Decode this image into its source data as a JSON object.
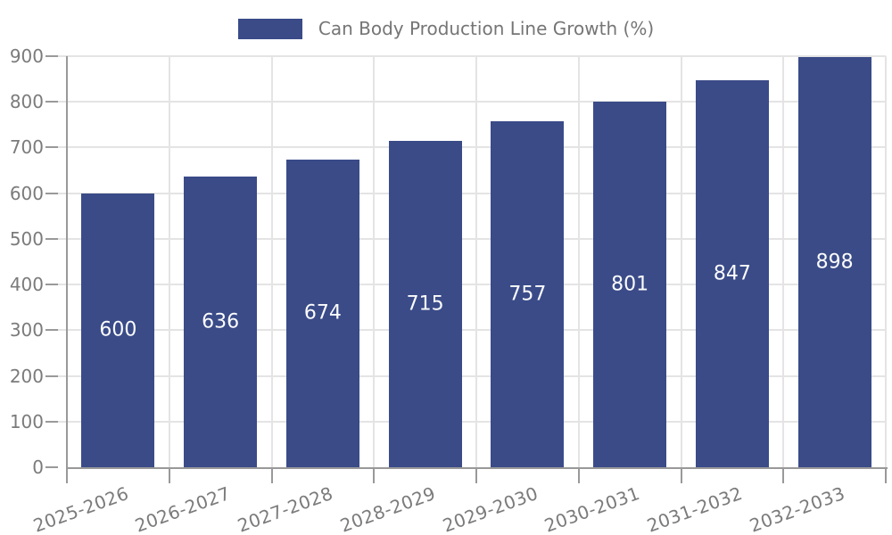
{
  "legend": {
    "position": "top-center"
  },
  "colors": {
    "bar": "#3A4B88",
    "bar_label": "#fcfcfc",
    "axis_label": "#7b7b7b",
    "legend_label": "#757575",
    "grid": "#e4e4e4",
    "axis": "#999999",
    "background": "#ffffff"
  },
  "chart_data": {
    "type": "bar",
    "title": "",
    "xlabel": "",
    "ylabel": "",
    "categories": [
      "2025-2026",
      "2026-2027",
      "2027-2028",
      "2028-2029",
      "2029-2030",
      "2030-2031",
      "2031-2032",
      "2032-2033"
    ],
    "series": [
      {
        "name": "Can Body Production Line Growth (%)",
        "values": [
          600,
          636,
          674,
          715,
          757,
          801,
          847,
          898
        ]
      }
    ],
    "bar_labels": [
      "600",
      "636",
      "674",
      "715",
      "757",
      "801",
      "847",
      "898"
    ],
    "bar_label_position": "inside-center",
    "ylim": [
      0,
      900
    ],
    "yticks": [
      0,
      100,
      200,
      300,
      400,
      500,
      600,
      700,
      800,
      900
    ],
    "ytick_labels": [
      "0",
      "100",
      "200",
      "300",
      "400",
      "500",
      "600",
      "700",
      "800",
      "900"
    ],
    "grid": true,
    "legend_position": "top-center",
    "x_label_rotation_deg": -20
  }
}
